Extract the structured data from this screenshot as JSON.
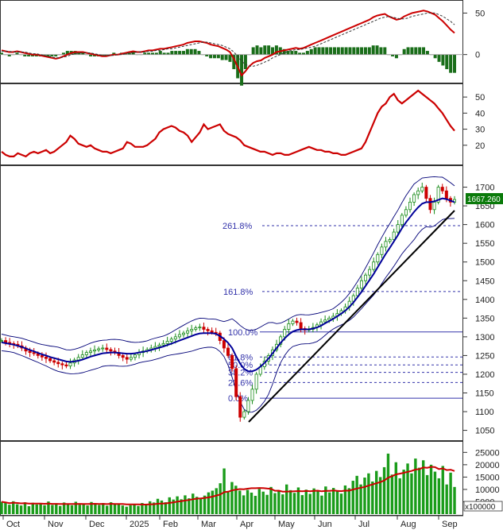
{
  "chart_data": [
    {
      "type": "line",
      "panel": "macd",
      "ylim": [
        -30,
        60
      ],
      "y_ticks": [
        "50",
        "0"
      ],
      "series": [
        {
          "color": "#cc0000",
          "values": [
            5,
            4,
            3,
            3,
            4,
            3,
            2,
            1,
            0,
            0,
            -1,
            -2,
            -3,
            -4,
            -5,
            -4,
            -2,
            0,
            2,
            3,
            3,
            3,
            2,
            1,
            0,
            -1,
            -2,
            -2,
            -1,
            0,
            0,
            1,
            2,
            3,
            4,
            3,
            3,
            4,
            5,
            5,
            6,
            7,
            7,
            8,
            9,
            10,
            11,
            12,
            14,
            15,
            16,
            16,
            15,
            14,
            12,
            11,
            10,
            8,
            6,
            3,
            -5,
            -15,
            -25,
            -20,
            -14,
            -10,
            -8,
            -7,
            -4,
            -2,
            0,
            3,
            4,
            5,
            6,
            7,
            8,
            7,
            8,
            10,
            12,
            14,
            16,
            18,
            20,
            22,
            24,
            26,
            28,
            30,
            32,
            34,
            36,
            38,
            40,
            42,
            45,
            47,
            48,
            49,
            46,
            44,
            42,
            43,
            46,
            48,
            50,
            51,
            52,
            53,
            52,
            50,
            48,
            44,
            40,
            35,
            30,
            26
          ]
        },
        {
          "color": "#333333",
          "values": [
            4,
            4,
            4,
            3,
            3,
            3,
            3,
            2,
            1,
            1,
            0,
            -1,
            -2,
            -3,
            -4,
            -4,
            -3,
            -2,
            0,
            1,
            2,
            2,
            2,
            2,
            1,
            0,
            -1,
            -1,
            -1,
            -1,
            0,
            0,
            1,
            2,
            2,
            3,
            3,
            3,
            4,
            4,
            5,
            5,
            6,
            7,
            7,
            8,
            9,
            10,
            11,
            12,
            13,
            14,
            15,
            15,
            14,
            13,
            12,
            11,
            9,
            7,
            3,
            -2,
            -8,
            -12,
            -14,
            -14,
            -13,
            -11,
            -9,
            -7,
            -4,
            -2,
            0,
            2,
            4,
            5,
            6,
            6,
            7,
            8,
            9,
            10,
            12,
            14,
            16,
            18,
            20,
            22,
            24,
            26,
            28,
            30,
            32,
            34,
            36,
            38,
            40,
            42,
            44,
            45,
            46,
            45,
            44,
            43,
            43,
            44,
            46,
            47,
            48,
            49,
            50,
            50,
            50,
            48,
            46,
            43,
            40,
            36
          ]
        }
      ]
    },
    {
      "type": "line",
      "panel": "rsi",
      "ylim": [
        10,
        56
      ],
      "y_ticks": [
        "50",
        "40",
        "30",
        "20"
      ],
      "series": [
        {
          "color": "#cc0000",
          "values": [
            16,
            14,
            13,
            13,
            15,
            14,
            13,
            15,
            16,
            15,
            16,
            17,
            15,
            16,
            18,
            20,
            22,
            26,
            24,
            21,
            20,
            19,
            20,
            18,
            17,
            16,
            16,
            15,
            16,
            17,
            18,
            22,
            21,
            19,
            19,
            19,
            20,
            22,
            24,
            28,
            30,
            31,
            32,
            31,
            29,
            28,
            26,
            22,
            25,
            28,
            33,
            30,
            31,
            32,
            33,
            29,
            27,
            26,
            25,
            23,
            20,
            19,
            18,
            17,
            16,
            16,
            15,
            14,
            15,
            15,
            14,
            14,
            15,
            16,
            17,
            18,
            19,
            18,
            17,
            17,
            16,
            16,
            15,
            15,
            14,
            14,
            15,
            16,
            17,
            18,
            22,
            28,
            34,
            40,
            44,
            46,
            50,
            52,
            48,
            46,
            48,
            50,
            52,
            54,
            52,
            50,
            48,
            46,
            43,
            40,
            36,
            32,
            29
          ]
        }
      ]
    },
    {
      "type": "line",
      "panel": "price",
      "ylim": [
        1030,
        1750
      ],
      "y_ticks": [
        "1700",
        "1650",
        "1600",
        "1550",
        "1500",
        "1450",
        "1400",
        "1350",
        "1300",
        "1250",
        "1200",
        "1150",
        "1100",
        "1050"
      ],
      "x_ticks": [
        "Oct",
        "Nov",
        "Dec",
        "2025",
        "Feb",
        "Mar",
        "Apr",
        "May",
        "Jun",
        "Jul",
        "Aug",
        "Sep"
      ],
      "last_price_label": "1667.260",
      "fibonacci_levels": [
        {
          "label": "261.8%",
          "value": 1597
        },
        {
          "label": "161.8%",
          "value": 1421
        },
        {
          "label": "100.0%",
          "value": 1313
        },
        {
          "label": "61.8%",
          "value": 1246
        },
        {
          "label": "50.0%",
          "value": 1225
        },
        {
          "label": "38.2%",
          "value": 1205
        },
        {
          "label": "23.6%",
          "value": 1178
        },
        {
          "label": "0.0%",
          "value": 1136
        }
      ],
      "series": [
        {
          "name": "",
          "color": "#cc0000",
          "values": [
            1290,
            1285,
            1282,
            1280,
            1276,
            1270,
            1262,
            1258,
            1255,
            1250,
            1246,
            1242,
            1236,
            1232,
            1228,
            1225,
            1222,
            1230,
            1238,
            1245,
            1252,
            1258,
            1262,
            1265,
            1268,
            1270,
            1266,
            1262,
            1258,
            1250,
            1245,
            1240,
            1245,
            1252,
            1258,
            1262,
            1266,
            1270,
            1274,
            1278,
            1282,
            1288,
            1294,
            1300,
            1306,
            1310,
            1316,
            1320,
            1324,
            1326,
            1320,
            1316,
            1312,
            1310,
            1290,
            1270,
            1250,
            1215,
            1140,
            1085,
            1100,
            1130,
            1160,
            1200,
            1220,
            1235,
            1250,
            1265,
            1280,
            1300,
            1320,
            1335,
            1342,
            1338,
            1322,
            1318,
            1320,
            1325,
            1332,
            1340,
            1345,
            1350,
            1355,
            1362,
            1370,
            1380,
            1395,
            1410,
            1430,
            1450,
            1465,
            1480,
            1500,
            1520,
            1540,
            1555,
            1560,
            1580,
            1600,
            1625,
            1640,
            1660,
            1680,
            1690,
            1700,
            1670,
            1640,
            1660,
            1700,
            1690,
            1670,
            1660,
            1667
          ]
        },
        {
          "name": "",
          "color": "#000099",
          "values": [
            1285,
            1283,
            1281,
            1279,
            1276,
            1273,
            1269,
            1265,
            1261,
            1257,
            1253,
            1250,
            1246,
            1243,
            1240,
            1237,
            1234,
            1233,
            1234,
            1236,
            1239,
            1243,
            1247,
            1250,
            1253,
            1256,
            1257,
            1258,
            1258,
            1257,
            1256,
            1255,
            1255,
            1256,
            1258,
            1260,
            1262,
            1265,
            1268,
            1271,
            1274,
            1278,
            1282,
            1286,
            1290,
            1294,
            1298,
            1302,
            1306,
            1309,
            1310,
            1310,
            1310,
            1308,
            1302,
            1294,
            1284,
            1270,
            1248,
            1228,
            1214,
            1208,
            1208,
            1212,
            1220,
            1230,
            1242,
            1256,
            1270,
            1284,
            1296,
            1306,
            1314,
            1318,
            1320,
            1320,
            1320,
            1322,
            1325,
            1330,
            1336,
            1342,
            1348,
            1355,
            1362,
            1370,
            1380,
            1392,
            1406,
            1420,
            1436,
            1452,
            1468,
            1486,
            1504,
            1522,
            1538,
            1555,
            1572,
            1590,
            1606,
            1620,
            1634,
            1646,
            1656,
            1660,
            1660,
            1662,
            1666,
            1670,
            1668,
            1664,
            1660
          ]
        }
      ]
    },
    {
      "type": "bar",
      "panel": "volume",
      "ylim": [
        0,
        28000
      ],
      "y_ticks": [
        "25000",
        "20000",
        "15000",
        "10000",
        "5000"
      ],
      "unit_label": "x100000",
      "values": [
        5000,
        4500,
        3800,
        5200,
        4000,
        3500,
        4800,
        3200,
        4600,
        3900,
        4200,
        3600,
        5100,
        3700,
        4400,
        3300,
        4700,
        4100,
        3600,
        5000,
        3800,
        4300,
        3500,
        4900,
        4000,
        3700,
        4500,
        3400,
        4800,
        3900,
        4200,
        3500,
        3000,
        3600,
        4100,
        3300,
        4500,
        3800,
        5200,
        4700,
        6200,
        5500,
        4800,
        6800,
        5900,
        7200,
        6000,
        7600,
        6400,
        8300,
        7000,
        6200,
        7500,
        8800,
        9500,
        10500,
        12500,
        18500,
        9000,
        13000,
        11500,
        9500,
        7600,
        9800,
        8700,
        7400,
        10200,
        9100,
        7800,
        11000,
        8500,
        9400,
        8000,
        12000,
        9700,
        8600,
        10800,
        7700,
        9900,
        8200,
        10400,
        9200,
        7500,
        11200,
        8800,
        10600,
        9600,
        8300,
        11600,
        10500,
        13500,
        15500,
        12000,
        14800,
        16500,
        13200,
        17500,
        15000,
        19000,
        24500,
        16000,
        21000,
        14500,
        18000,
        20500,
        16500,
        22500,
        18800,
        21800,
        15800,
        20000,
        17200,
        14500,
        19500,
        12000,
        16800,
        11000
      ]
    }
  ]
}
